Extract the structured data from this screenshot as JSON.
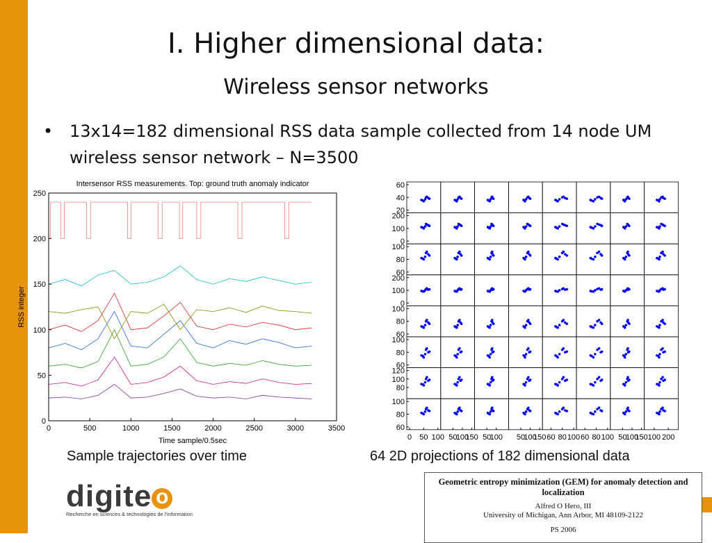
{
  "title": "I. Higher dimensional data:",
  "subtitle": "Wireless sensor networks",
  "bullets": [
    "13x14=182 dimensional RSS data sample collected from 14 node UM wireless sensor network – N=3500"
  ],
  "captions": [
    "Sample trajectories over time",
    "64 2D projections of 182 dimensional data"
  ],
  "logo": {
    "text": "digite",
    "letter": "o",
    "tagline": "Recherche en sciences & technologies de l'information"
  },
  "paper": {
    "title": "Geometric entropy minimization (GEM) for anomaly detection and localization",
    "author": "Alfred O Hero, III",
    "affiliation": "University of Michigan, Ann Arbor, MI 48109-2122",
    "venue": "PS 2006"
  },
  "chart_data": [
    {
      "type": "line",
      "title": "Intersensor RSS measurements. Top: ground truth anomaly indicator",
      "xlabel": "Time sample/0.5sec",
      "ylabel": "RSS integer",
      "xlim": [
        0,
        3500
      ],
      "xticks": [
        0,
        500,
        1000,
        1500,
        2000,
        2500,
        3000,
        3500
      ],
      "ylim": [
        0,
        250
      ],
      "yticks": [
        0,
        50,
        100,
        150,
        200,
        250
      ],
      "series": [
        {
          "color": "#f08080",
          "x": [
            0,
            20,
            20,
            150,
            150,
            190,
            190,
            460,
            460,
            510,
            510,
            960,
            960,
            1000,
            1000,
            1330,
            1330,
            1380,
            1380,
            1590,
            1590,
            1630,
            1630,
            1800,
            1800,
            1850,
            1850,
            2300,
            2300,
            2350,
            2350,
            2870,
            2870,
            2920,
            2920,
            3200
          ],
          "values": [
            200,
            200,
            240,
            240,
            200,
            200,
            240,
            240,
            200,
            200,
            240,
            240,
            200,
            200,
            240,
            240,
            200,
            200,
            240,
            240,
            200,
            200,
            240,
            240,
            200,
            200,
            240,
            240,
            200,
            200,
            240,
            240,
            200,
            200,
            240,
            240
          ]
        },
        {
          "color": "#1f5fd4",
          "x": [
            0,
            200,
            400,
            600,
            800,
            1000,
            1200,
            1400,
            1600,
            1800,
            2000,
            2200,
            2400,
            2600,
            2800,
            3000,
            3200
          ],
          "values": [
            80,
            85,
            78,
            90,
            120,
            82,
            80,
            95,
            110,
            85,
            80,
            88,
            84,
            90,
            86,
            80,
            82
          ]
        },
        {
          "color": "#2ca02c",
          "x": [
            0,
            200,
            400,
            600,
            800,
            1000,
            1200,
            1400,
            1600,
            1800,
            2000,
            2200,
            2400,
            2600,
            2800,
            3000,
            3200
          ],
          "values": [
            60,
            62,
            58,
            65,
            100,
            60,
            62,
            70,
            90,
            64,
            60,
            63,
            61,
            66,
            62,
            60,
            61
          ]
        },
        {
          "color": "#d62728",
          "x": [
            0,
            200,
            400,
            600,
            800,
            1000,
            1200,
            1400,
            1600,
            1800,
            2000,
            2200,
            2400,
            2600,
            2800,
            3000,
            3200
          ],
          "values": [
            100,
            105,
            98,
            110,
            140,
            100,
            102,
            115,
            130,
            104,
            100,
            106,
            103,
            108,
            105,
            100,
            102
          ]
        },
        {
          "color": "#17becf",
          "x": [
            0,
            200,
            400,
            600,
            800,
            1000,
            1200,
            1400,
            1600,
            1800,
            2000,
            2200,
            2400,
            2600,
            2800,
            3000,
            3200
          ],
          "values": [
            150,
            155,
            148,
            160,
            165,
            150,
            152,
            158,
            170,
            155,
            150,
            156,
            153,
            158,
            154,
            150,
            152
          ]
        },
        {
          "color": "#c71585",
          "x": [
            0,
            200,
            400,
            600,
            800,
            1000,
            1200,
            1400,
            1600,
            1800,
            2000,
            2200,
            2400,
            2600,
            2800,
            3000,
            3200
          ],
          "values": [
            40,
            42,
            38,
            45,
            70,
            40,
            42,
            48,
            60,
            44,
            40,
            43,
            41,
            46,
            42,
            40,
            41
          ]
        },
        {
          "color": "#8c8c00",
          "x": [
            0,
            200,
            400,
            600,
            800,
            1000,
            1200,
            1400,
            1600,
            1800,
            2000,
            2200,
            2400,
            2600,
            2800,
            3000,
            3200
          ],
          "values": [
            120,
            118,
            122,
            125,
            90,
            120,
            118,
            128,
            100,
            122,
            120,
            124,
            119,
            126,
            121,
            120,
            118
          ]
        },
        {
          "color": "#7b3294",
          "x": [
            0,
            200,
            400,
            600,
            800,
            1000,
            1200,
            1400,
            1600,
            1800,
            2000,
            2200,
            2400,
            2600,
            2800,
            3000,
            3200
          ],
          "values": [
            25,
            26,
            24,
            28,
            40,
            25,
            26,
            30,
            35,
            27,
            25,
            26,
            24,
            28,
            26,
            25,
            24
          ]
        }
      ]
    },
    {
      "type": "scatter_matrix",
      "color": "#0000ee",
      "columns": [
        {
          "xlim": [
            0,
            100
          ],
          "xticks": [
            0,
            50,
            100
          ],
          "values": [
            42,
            58,
            50,
            66,
            55,
            61,
            47,
            70
          ]
        },
        {
          "xlim": [
            0,
            150
          ],
          "xticks": [
            50,
            100,
            150
          ],
          "values": [
            60,
            80,
            70,
            90,
            75,
            85,
            65,
            95
          ]
        },
        {
          "xlim": [
            0,
            150
          ],
          "xticks": [
            50,
            100
          ],
          "values": [
            55,
            75,
            65,
            80,
            70,
            78,
            60,
            85
          ]
        },
        {
          "xlim": [
            0,
            150
          ],
          "xticks": [
            50,
            100,
            150
          ],
          "values": [
            65,
            85,
            72,
            95,
            78,
            90,
            70,
            100
          ]
        },
        {
          "xlim": [
            50,
            100
          ],
          "xticks": [
            60,
            80,
            100
          ],
          "values": [
            68,
            80,
            72,
            85,
            75,
            82,
            70,
            88
          ]
        },
        {
          "xlim": [
            50,
            100
          ],
          "xticks": [
            60,
            80,
            100
          ],
          "values": [
            70,
            82,
            75,
            88,
            78,
            85,
            72,
            90
          ]
        },
        {
          "xlim": [
            0,
            150
          ],
          "xticks": [
            50,
            100,
            150
          ],
          "values": [
            55,
            75,
            62,
            80,
            68,
            78,
            60,
            85
          ]
        },
        {
          "xlim": [
            50,
            250
          ],
          "xticks": [
            100,
            200
          ],
          "values": [
            120,
            150,
            135,
            165,
            140,
            160,
            130,
            175
          ]
        }
      ],
      "rows": [
        {
          "ylim": [
            20,
            60
          ],
          "yticks": [
            20,
            40,
            60
          ],
          "values": [
            36,
            40,
            34,
            39,
            37,
            41,
            35,
            38
          ]
        },
        {
          "ylim": [
            0,
            200
          ],
          "yticks": [
            0,
            100,
            200
          ],
          "values": [
            110,
            135,
            100,
            125,
            115,
            130,
            105,
            120
          ]
        },
        {
          "ylim": [
            60,
            100
          ],
          "yticks": [
            60,
            80,
            100
          ],
          "values": [
            82,
            90,
            80,
            88,
            84,
            92,
            81,
            86
          ]
        },
        {
          "ylim": [
            0,
            200
          ],
          "yticks": [
            0,
            100,
            200
          ],
          "values": [
            95,
            110,
            90,
            105,
            100,
            115,
            92,
            108
          ]
        },
        {
          "ylim": [
            60,
            100
          ],
          "yticks": [
            60,
            80,
            100
          ],
          "values": [
            72,
            80,
            70,
            78,
            74,
            82,
            71,
            76
          ]
        },
        {
          "ylim": [
            60,
            100
          ],
          "yticks": [
            60,
            80,
            100
          ],
          "values": [
            75,
            84,
            72,
            80,
            77,
            86,
            74,
            81
          ]
        },
        {
          "ylim": [
            60,
            120
          ],
          "yticks": [
            80,
            100,
            120
          ],
          "values": [
            88,
            100,
            85,
            96,
            92,
            104,
            87,
            98
          ]
        },
        {
          "ylim": [
            60,
            100
          ],
          "yticks": [
            60,
            80,
            100
          ],
          "values": [
            82,
            88,
            80,
            86,
            84,
            90,
            81,
            85
          ]
        }
      ]
    }
  ]
}
